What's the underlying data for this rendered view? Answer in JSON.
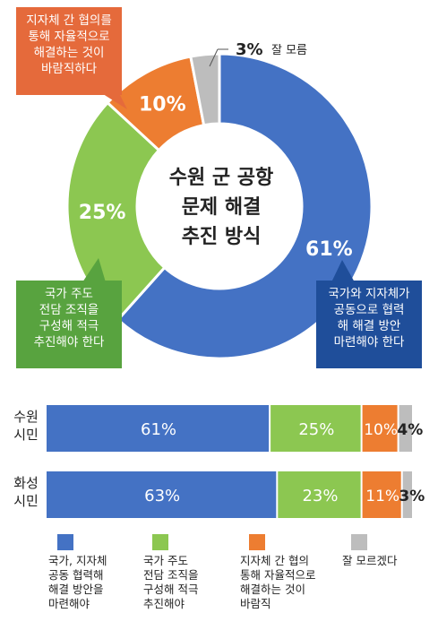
{
  "colors": {
    "blue": "#4472c4",
    "green": "#8cc751",
    "orange": "#ed7d31",
    "gray": "#bdbdbd",
    "callout_orange": "#e56a3b",
    "callout_green": "#58a33f",
    "callout_blue": "#1f4e9a"
  },
  "chart_data": [
    {
      "type": "pie",
      "variant": "donut",
      "title_lines": [
        "수원 군 공항",
        "문제 해결",
        "추진 방식"
      ],
      "slices": [
        {
          "key": "blue",
          "value": 61,
          "label": "61%"
        },
        {
          "key": "green",
          "value": 25,
          "label": "25%"
        },
        {
          "key": "orange",
          "value": 10,
          "label": "10%"
        },
        {
          "key": "gray",
          "value": 3,
          "label": "3%",
          "text": "잘 모름"
        }
      ],
      "callouts": {
        "orange": [
          "지자체 간 협의를",
          "통해 자율적으로",
          "해결하는 것이",
          "바람직하다"
        ],
        "green": [
          "국가 주도",
          "전담 조직을",
          "구성해 적극",
          "추진해야 한다"
        ],
        "blue": [
          "국가와 지자체가",
          "공동으로 협력",
          "해 해결 방안",
          "마련해야 한다"
        ]
      }
    },
    {
      "type": "bar",
      "orientation": "horizontal-stacked",
      "categories": [
        [
          "수원",
          "시민"
        ],
        [
          "화성",
          "시민"
        ]
      ],
      "series": [
        {
          "key": "blue",
          "values": [
            61,
            63
          ],
          "labels": [
            "61%",
            "63%"
          ]
        },
        {
          "key": "green",
          "values": [
            25,
            23
          ],
          "labels": [
            "25%",
            "23%"
          ]
        },
        {
          "key": "orange",
          "values": [
            10,
            11
          ],
          "labels": [
            "10%",
            "11%"
          ]
        },
        {
          "key": "gray",
          "values": [
            4,
            3
          ],
          "labels": [
            "4%",
            "3%"
          ]
        }
      ],
      "legend": [
        {
          "key": "blue",
          "lines": [
            "국가, 지자체",
            "공동 협력해",
            "해결 방안을",
            "마련해야"
          ]
        },
        {
          "key": "green",
          "lines": [
            "국가 주도",
            "전담 조직을",
            "구성해 적극",
            "추진해야"
          ]
        },
        {
          "key": "orange",
          "lines": [
            "지자체 간 협의",
            "통해 자율적으로",
            "해결하는 것이",
            "바람직"
          ]
        },
        {
          "key": "gray",
          "lines": [
            "잘 모르겠다"
          ]
        }
      ]
    }
  ]
}
